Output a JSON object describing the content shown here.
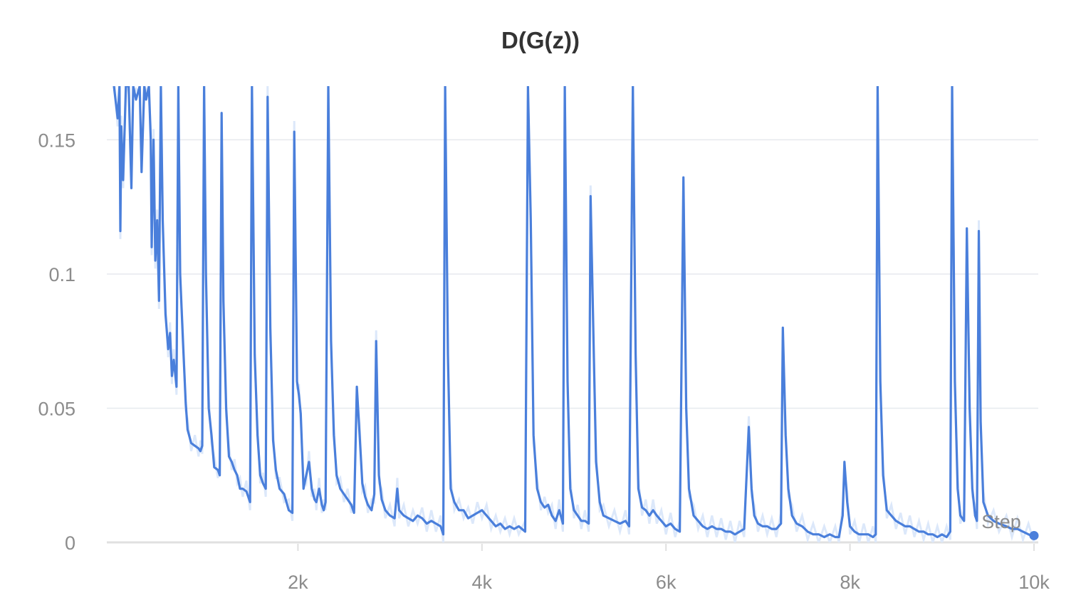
{
  "chart_data": {
    "type": "line",
    "title": "D(G(z))",
    "xlabel": "Step",
    "ylabel": "",
    "xlim": [
      0,
      10000
    ],
    "ylim": [
      0,
      0.17
    ],
    "x_ticks": [
      2000,
      4000,
      6000,
      8000,
      10000
    ],
    "x_tick_labels": [
      "2k",
      "4k",
      "6k",
      "8k",
      "10k"
    ],
    "y_ticks": [
      0,
      0.05,
      0.1,
      0.15
    ],
    "y_tick_labels": [
      "0",
      "0.05",
      "0.1",
      "0.15"
    ],
    "grid": true,
    "colors": {
      "line": "#4a7fdb",
      "raw_line": "#dce8fa",
      "grid": "#e6e9ee",
      "axis": "#e0e0e0",
      "end_point": "#4a7fdb"
    },
    "series": [
      {
        "smoothed": true,
        "points": [
          [
            0,
            0.17
          ],
          [
            40,
            0.158
          ],
          [
            60,
            0.17
          ],
          [
            70,
            0.116
          ],
          [
            80,
            0.155
          ],
          [
            100,
            0.135
          ],
          [
            130,
            0.17
          ],
          [
            160,
            0.17
          ],
          [
            190,
            0.132
          ],
          [
            210,
            0.17
          ],
          [
            240,
            0.165
          ],
          [
            280,
            0.17
          ],
          [
            300,
            0.138
          ],
          [
            330,
            0.17
          ],
          [
            350,
            0.165
          ],
          [
            380,
            0.17
          ],
          [
            400,
            0.15
          ],
          [
            410,
            0.11
          ],
          [
            430,
            0.15
          ],
          [
            450,
            0.105
          ],
          [
            470,
            0.12
          ],
          [
            490,
            0.09
          ],
          [
            510,
            0.17
          ],
          [
            530,
            0.12
          ],
          [
            560,
            0.085
          ],
          [
            590,
            0.072
          ],
          [
            610,
            0.078
          ],
          [
            630,
            0.062
          ],
          [
            650,
            0.068
          ],
          [
            680,
            0.058
          ],
          [
            700,
            0.17
          ],
          [
            720,
            0.1
          ],
          [
            750,
            0.075
          ],
          [
            780,
            0.052
          ],
          [
            800,
            0.042
          ],
          [
            840,
            0.037
          ],
          [
            880,
            0.036
          ],
          [
            920,
            0.035
          ],
          [
            940,
            0.034
          ],
          [
            960,
            0.036
          ],
          [
            980,
            0.17
          ],
          [
            1000,
            0.1
          ],
          [
            1030,
            0.05
          ],
          [
            1060,
            0.04
          ],
          [
            1090,
            0.028
          ],
          [
            1130,
            0.027
          ],
          [
            1150,
            0.025
          ],
          [
            1170,
            0.16
          ],
          [
            1190,
            0.09
          ],
          [
            1220,
            0.05
          ],
          [
            1250,
            0.032
          ],
          [
            1280,
            0.03
          ],
          [
            1310,
            0.027
          ],
          [
            1340,
            0.025
          ],
          [
            1370,
            0.02
          ],
          [
            1400,
            0.02
          ],
          [
            1440,
            0.019
          ],
          [
            1480,
            0.015
          ],
          [
            1500,
            0.17
          ],
          [
            1530,
            0.07
          ],
          [
            1560,
            0.04
          ],
          [
            1590,
            0.025
          ],
          [
            1620,
            0.022
          ],
          [
            1650,
            0.02
          ],
          [
            1670,
            0.166
          ],
          [
            1700,
            0.08
          ],
          [
            1730,
            0.038
          ],
          [
            1760,
            0.027
          ],
          [
            1800,
            0.02
          ],
          [
            1850,
            0.018
          ],
          [
            1900,
            0.012
          ],
          [
            1940,
            0.011
          ],
          [
            1960,
            0.153
          ],
          [
            1990,
            0.06
          ],
          [
            2010,
            0.055
          ],
          [
            2030,
            0.048
          ],
          [
            2060,
            0.02
          ],
          [
            2090,
            0.025
          ],
          [
            2120,
            0.03
          ],
          [
            2150,
            0.02
          ],
          [
            2180,
            0.016
          ],
          [
            2200,
            0.015
          ],
          [
            2230,
            0.02
          ],
          [
            2260,
            0.014
          ],
          [
            2280,
            0.012
          ],
          [
            2300,
            0.015
          ],
          [
            2330,
            0.17
          ],
          [
            2360,
            0.075
          ],
          [
            2390,
            0.04
          ],
          [
            2420,
            0.025
          ],
          [
            2460,
            0.02
          ],
          [
            2500,
            0.018
          ],
          [
            2540,
            0.016
          ],
          [
            2580,
            0.014
          ],
          [
            2610,
            0.011
          ],
          [
            2640,
            0.058
          ],
          [
            2670,
            0.04
          ],
          [
            2700,
            0.022
          ],
          [
            2730,
            0.017
          ],
          [
            2760,
            0.014
          ],
          [
            2800,
            0.012
          ],
          [
            2830,
            0.018
          ],
          [
            2850,
            0.075
          ],
          [
            2880,
            0.025
          ],
          [
            2910,
            0.016
          ],
          [
            2950,
            0.012
          ],
          [
            3000,
            0.01
          ],
          [
            3050,
            0.009
          ],
          [
            3080,
            0.02
          ],
          [
            3100,
            0.012
          ],
          [
            3150,
            0.01
          ],
          [
            3200,
            0.009
          ],
          [
            3250,
            0.008
          ],
          [
            3300,
            0.01
          ],
          [
            3350,
            0.009
          ],
          [
            3400,
            0.007
          ],
          [
            3450,
            0.008
          ],
          [
            3500,
            0.007
          ],
          [
            3550,
            0.006
          ],
          [
            3580,
            0.003
          ],
          [
            3600,
            0.17
          ],
          [
            3630,
            0.07
          ],
          [
            3660,
            0.02
          ],
          [
            3700,
            0.015
          ],
          [
            3750,
            0.012
          ],
          [
            3800,
            0.012
          ],
          [
            3850,
            0.009
          ],
          [
            3900,
            0.01
          ],
          [
            3950,
            0.011
          ],
          [
            4000,
            0.012
          ],
          [
            4050,
            0.01
          ],
          [
            4100,
            0.008
          ],
          [
            4150,
            0.006
          ],
          [
            4200,
            0.007
          ],
          [
            4250,
            0.005
          ],
          [
            4300,
            0.006
          ],
          [
            4350,
            0.005
          ],
          [
            4400,
            0.006
          ],
          [
            4470,
            0.004
          ],
          [
            4500,
            0.17
          ],
          [
            4530,
            0.12
          ],
          [
            4560,
            0.04
          ],
          [
            4600,
            0.02
          ],
          [
            4640,
            0.015
          ],
          [
            4680,
            0.013
          ],
          [
            4720,
            0.014
          ],
          [
            4760,
            0.01
          ],
          [
            4800,
            0.008
          ],
          [
            4840,
            0.012
          ],
          [
            4880,
            0.007
          ],
          [
            4900,
            0.17
          ],
          [
            4930,
            0.06
          ],
          [
            4960,
            0.02
          ],
          [
            5000,
            0.012
          ],
          [
            5040,
            0.01
          ],
          [
            5080,
            0.008
          ],
          [
            5120,
            0.008
          ],
          [
            5160,
            0.007
          ],
          [
            5180,
            0.129
          ],
          [
            5210,
            0.08
          ],
          [
            5240,
            0.03
          ],
          [
            5280,
            0.015
          ],
          [
            5320,
            0.01
          ],
          [
            5380,
            0.009
          ],
          [
            5440,
            0.008
          ],
          [
            5500,
            0.007
          ],
          [
            5560,
            0.008
          ],
          [
            5600,
            0.006
          ],
          [
            5640,
            0.17
          ],
          [
            5670,
            0.07
          ],
          [
            5700,
            0.02
          ],
          [
            5740,
            0.013
          ],
          [
            5780,
            0.012
          ],
          [
            5820,
            0.01
          ],
          [
            5860,
            0.012
          ],
          [
            5900,
            0.01
          ],
          [
            5950,
            0.008
          ],
          [
            6000,
            0.006
          ],
          [
            6050,
            0.007
          ],
          [
            6100,
            0.005
          ],
          [
            6150,
            0.004
          ],
          [
            6190,
            0.136
          ],
          [
            6220,
            0.05
          ],
          [
            6250,
            0.02
          ],
          [
            6300,
            0.01
          ],
          [
            6350,
            0.008
          ],
          [
            6400,
            0.006
          ],
          [
            6450,
            0.005
          ],
          [
            6500,
            0.006
          ],
          [
            6550,
            0.005
          ],
          [
            6600,
            0.005
          ],
          [
            6650,
            0.004
          ],
          [
            6700,
            0.004
          ],
          [
            6750,
            0.003
          ],
          [
            6800,
            0.004
          ],
          [
            6850,
            0.005
          ],
          [
            6900,
            0.043
          ],
          [
            6930,
            0.02
          ],
          [
            6960,
            0.01
          ],
          [
            7000,
            0.007
          ],
          [
            7050,
            0.006
          ],
          [
            7100,
            0.006
          ],
          [
            7150,
            0.005
          ],
          [
            7200,
            0.005
          ],
          [
            7250,
            0.007
          ],
          [
            7270,
            0.08
          ],
          [
            7300,
            0.04
          ],
          [
            7330,
            0.02
          ],
          [
            7370,
            0.01
          ],
          [
            7420,
            0.007
          ],
          [
            7480,
            0.006
          ],
          [
            7540,
            0.004
          ],
          [
            7600,
            0.003
          ],
          [
            7660,
            0.003
          ],
          [
            7720,
            0.002
          ],
          [
            7780,
            0.003
          ],
          [
            7840,
            0.002
          ],
          [
            7880,
            0.002
          ],
          [
            7920,
            0.01
          ],
          [
            7940,
            0.03
          ],
          [
            7970,
            0.015
          ],
          [
            8000,
            0.006
          ],
          [
            8050,
            0.004
          ],
          [
            8100,
            0.003
          ],
          [
            8150,
            0.003
          ],
          [
            8200,
            0.003
          ],
          [
            8250,
            0.002
          ],
          [
            8280,
            0.003
          ],
          [
            8300,
            0.17
          ],
          [
            8330,
            0.06
          ],
          [
            8360,
            0.025
          ],
          [
            8400,
            0.012
          ],
          [
            8450,
            0.01
          ],
          [
            8500,
            0.008
          ],
          [
            8550,
            0.007
          ],
          [
            8600,
            0.006
          ],
          [
            8650,
            0.006
          ],
          [
            8700,
            0.005
          ],
          [
            8750,
            0.004
          ],
          [
            8800,
            0.004
          ],
          [
            8850,
            0.003
          ],
          [
            8900,
            0.003
          ],
          [
            8950,
            0.002
          ],
          [
            9000,
            0.003
          ],
          [
            9050,
            0.002
          ],
          [
            9090,
            0.004
          ],
          [
            9110,
            0.17
          ],
          [
            9140,
            0.06
          ],
          [
            9170,
            0.02
          ],
          [
            9200,
            0.01
          ],
          [
            9240,
            0.008
          ],
          [
            9270,
            0.117
          ],
          [
            9300,
            0.05
          ],
          [
            9330,
            0.02
          ],
          [
            9360,
            0.01
          ],
          [
            9380,
            0.008
          ],
          [
            9400,
            0.116
          ],
          [
            9420,
            0.045
          ],
          [
            9450,
            0.015
          ],
          [
            9500,
            0.01
          ],
          [
            9560,
            0.008
          ],
          [
            9620,
            0.007
          ],
          [
            9700,
            0.006
          ],
          [
            9760,
            0.005
          ],
          [
            9820,
            0.005
          ],
          [
            9880,
            0.004
          ],
          [
            9940,
            0.003
          ],
          [
            10000,
            0.002
          ]
        ]
      }
    ],
    "end_point": [
      10000,
      0.002
    ]
  }
}
